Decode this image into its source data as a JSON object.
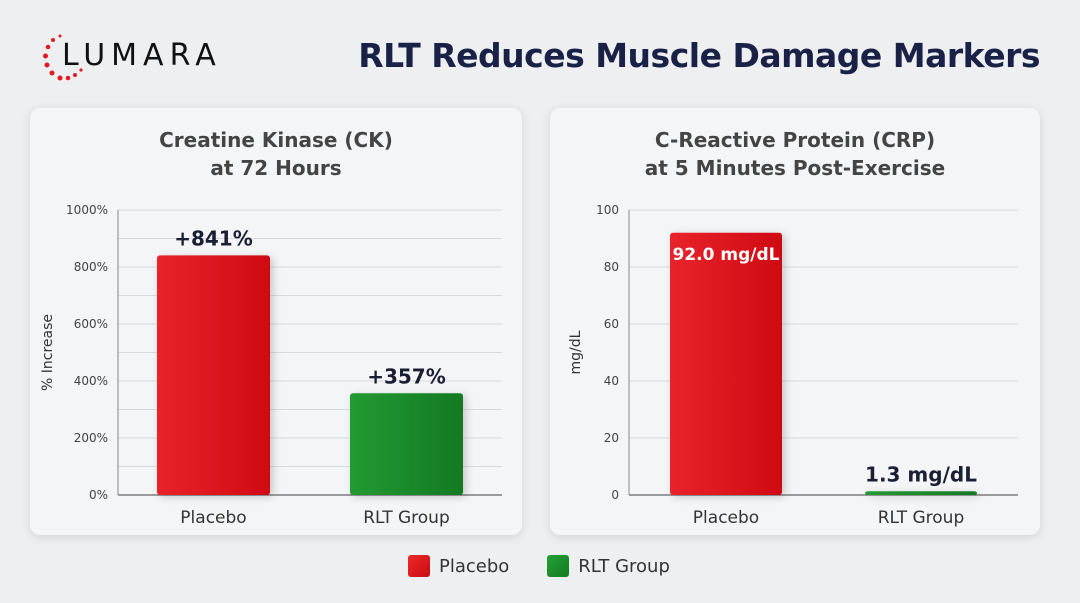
{
  "logo": {
    "text": "LUMARA"
  },
  "title": "RLT Reduces Muscle Damage Markers",
  "colors": {
    "placebo": "#dd1118",
    "rlt": "#1a8a2a",
    "title": "#1a2147"
  },
  "legend": [
    {
      "label": "Placebo",
      "color": "#dd1118"
    },
    {
      "label": "RLT Group",
      "color": "#1a8a2a"
    }
  ],
  "chart_data": [
    {
      "type": "bar",
      "title": "Creatine Kinase (CK)",
      "subtitle": "at 72 Hours",
      "ylabel": "% Increase",
      "categories": [
        "Placebo",
        "RLT Group"
      ],
      "values": [
        841,
        357
      ],
      "data_labels": [
        "+841%",
        "+357%"
      ],
      "ylim": [
        0,
        1000
      ],
      "yticks": [
        "0%",
        "200%",
        "400%",
        "600%",
        "800%",
        "1000%"
      ],
      "grid": true,
      "grid_step": 100
    },
    {
      "type": "bar",
      "title": "C-Reactive Protein (CRP)",
      "subtitle": "at 5 Minutes Post-Exercise",
      "ylabel": "mg/dL",
      "categories": [
        "Placebo",
        "RLT Group"
      ],
      "values": [
        92.0,
        1.3
      ],
      "data_labels": [
        "92.0 mg/dL",
        "1.3 mg/dL"
      ],
      "ylim": [
        0,
        100
      ],
      "yticks": [
        "0",
        "20",
        "40",
        "60",
        "80",
        "100"
      ],
      "grid": true,
      "grid_step": 20
    }
  ]
}
